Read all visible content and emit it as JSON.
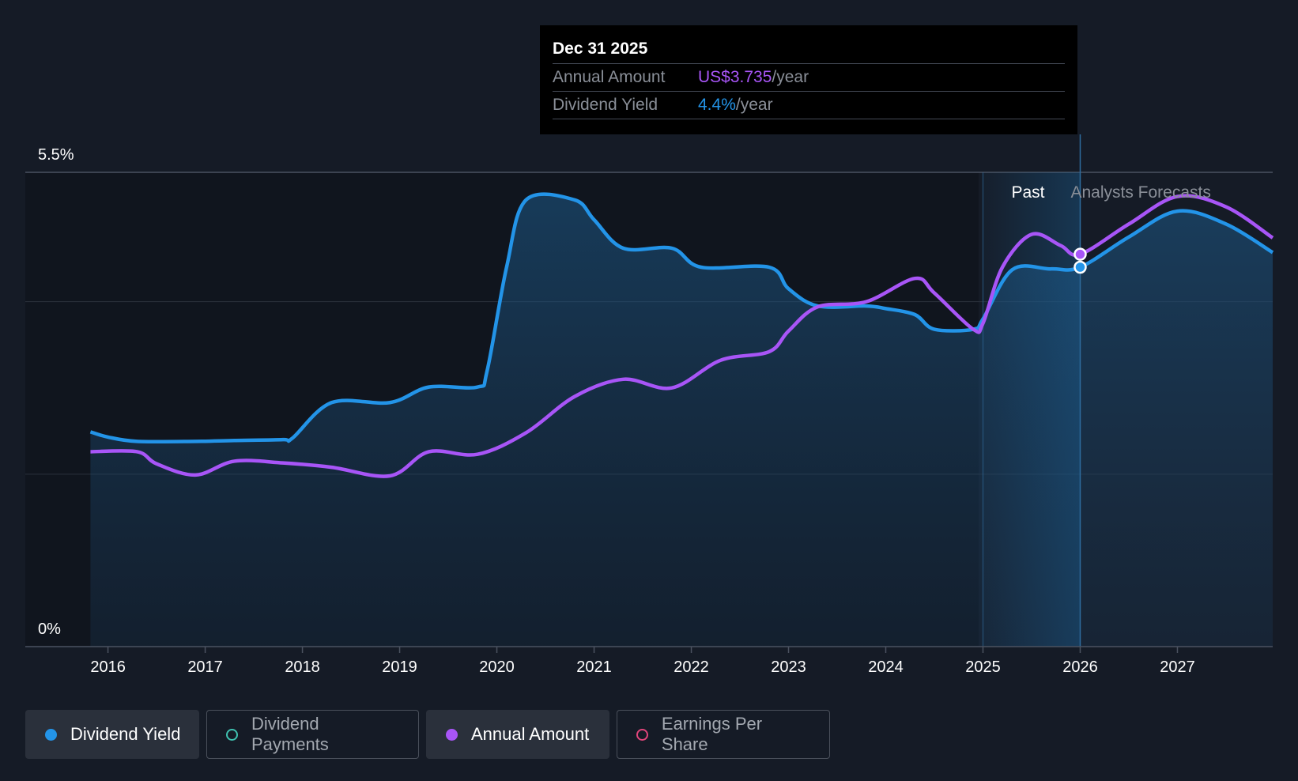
{
  "tooltip": {
    "date": "Dec 31 2025",
    "rows": [
      {
        "label": "Annual Amount",
        "value": "US$3.735",
        "unit": "/year"
      },
      {
        "label": "Dividend Yield",
        "value": "4.4%",
        "unit": "/year"
      }
    ]
  },
  "legend": [
    {
      "label": "Dividend Yield",
      "color": "#2394e8",
      "active": true,
      "filled": true
    },
    {
      "label": "Dividend Payments",
      "color": "#3fc1b0",
      "active": false,
      "filled": false
    },
    {
      "label": "Annual Amount",
      "color": "#a855f7",
      "active": true,
      "filled": true
    },
    {
      "label": "Earnings Per Share",
      "color": "#e0457b",
      "active": false,
      "filled": false
    }
  ],
  "chart_data": {
    "type": "line",
    "y_top_label": "5.5%",
    "y_bottom_label": "0%",
    "ylim": [
      0,
      5.5
    ],
    "xlim": [
      2015.67,
      2027.98
    ],
    "x_ticks": [
      "2016",
      "2017",
      "2018",
      "2019",
      "2020",
      "2021",
      "2022",
      "2023",
      "2024",
      "2025",
      "2026",
      "2027"
    ],
    "x_tick_values": [
      2016,
      2017,
      2018,
      2019,
      2020,
      2021,
      2022,
      2023,
      2024,
      2025,
      2026,
      2027
    ],
    "gridlines": [
      5.5,
      4.0,
      2.0
    ],
    "past_label": "Past",
    "forecast_label": "Analysts Forecasts",
    "forecast_start": 2025.0,
    "hover_x": 2026.0,
    "colors": {
      "yield": "#2394e8",
      "amount": "#a855f7",
      "divider": "#2f6c9e"
    },
    "series": [
      {
        "name": "Dividend Yield",
        "points": [
          [
            2015.82,
            2.49
          ],
          [
            2016.0,
            2.43
          ],
          [
            2016.3,
            2.38
          ],
          [
            2016.9,
            2.38
          ],
          [
            2017.3,
            2.39
          ],
          [
            2017.8,
            2.4
          ],
          [
            2017.9,
            2.42
          ],
          [
            2018.3,
            2.83
          ],
          [
            2018.9,
            2.83
          ],
          [
            2019.3,
            3.01
          ],
          [
            2019.8,
            3.01
          ],
          [
            2019.9,
            3.2
          ],
          [
            2020.1,
            4.4
          ],
          [
            2020.3,
            5.18
          ],
          [
            2020.8,
            5.18
          ],
          [
            2021.0,
            4.95
          ],
          [
            2021.3,
            4.62
          ],
          [
            2021.8,
            4.62
          ],
          [
            2022.1,
            4.4
          ],
          [
            2022.8,
            4.4
          ],
          [
            2023.0,
            4.15
          ],
          [
            2023.3,
            3.95
          ],
          [
            2023.8,
            3.95
          ],
          [
            2024.0,
            3.92
          ],
          [
            2024.3,
            3.85
          ],
          [
            2024.5,
            3.68
          ],
          [
            2024.9,
            3.68
          ],
          [
            2025.0,
            3.8
          ],
          [
            2025.3,
            4.37
          ],
          [
            2025.7,
            4.38
          ],
          [
            2026.0,
            4.4
          ],
          [
            2026.5,
            4.75
          ],
          [
            2027.0,
            5.05
          ],
          [
            2027.5,
            4.9
          ],
          [
            2027.98,
            4.57
          ]
        ]
      },
      {
        "name": "Annual Amount",
        "points": [
          [
            2015.82,
            2.26
          ],
          [
            2016.3,
            2.26
          ],
          [
            2016.5,
            2.12
          ],
          [
            2016.9,
            1.99
          ],
          [
            2017.3,
            2.15
          ],
          [
            2017.8,
            2.13
          ],
          [
            2018.3,
            2.08
          ],
          [
            2018.9,
            1.98
          ],
          [
            2019.3,
            2.26
          ],
          [
            2019.8,
            2.23
          ],
          [
            2020.3,
            2.48
          ],
          [
            2020.8,
            2.9
          ],
          [
            2021.3,
            3.1
          ],
          [
            2021.8,
            3.0
          ],
          [
            2022.3,
            3.32
          ],
          [
            2022.8,
            3.42
          ],
          [
            2023.0,
            3.66
          ],
          [
            2023.3,
            3.94
          ],
          [
            2023.8,
            4.0
          ],
          [
            2024.3,
            4.27
          ],
          [
            2024.5,
            4.1
          ],
          [
            2024.9,
            3.68
          ],
          [
            2025.0,
            3.75
          ],
          [
            2025.2,
            4.4
          ],
          [
            2025.5,
            4.78
          ],
          [
            2025.8,
            4.65
          ],
          [
            2026.0,
            4.55
          ],
          [
            2026.5,
            4.9
          ],
          [
            2027.0,
            5.22
          ],
          [
            2027.5,
            5.1
          ],
          [
            2027.98,
            4.74
          ]
        ]
      }
    ]
  }
}
